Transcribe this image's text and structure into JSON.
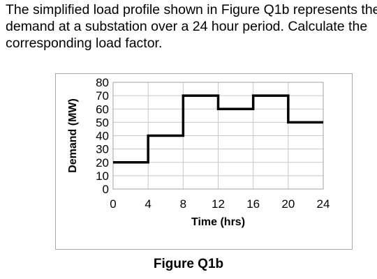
{
  "question": {
    "lines": [
      "The simplified load profile shown in Figure Q1b represents the",
      "demand at a substation over a 24 hour period. Calculate the",
      "corresponding load factor."
    ]
  },
  "figure": {
    "caption": "Figure Q1b"
  },
  "chart_data": {
    "type": "line",
    "step": "post",
    "title": "",
    "xlabel": "Time (hrs)",
    "ylabel": "Demand (MW)",
    "xlim": [
      0,
      24
    ],
    "ylim": [
      0,
      80
    ],
    "xticks": [
      0,
      4,
      8,
      12,
      16,
      20,
      24
    ],
    "yticks": [
      0,
      10,
      20,
      30,
      40,
      50,
      60,
      70,
      80
    ],
    "grid": true,
    "legend": "none",
    "series": [
      {
        "x": [
          0,
          4,
          8,
          12,
          16,
          20,
          24
        ],
        "y": [
          20,
          40,
          70,
          60,
          70,
          50,
          50
        ]
      }
    ],
    "line_color": "#000000",
    "grid_color": "#c8c8c8"
  }
}
